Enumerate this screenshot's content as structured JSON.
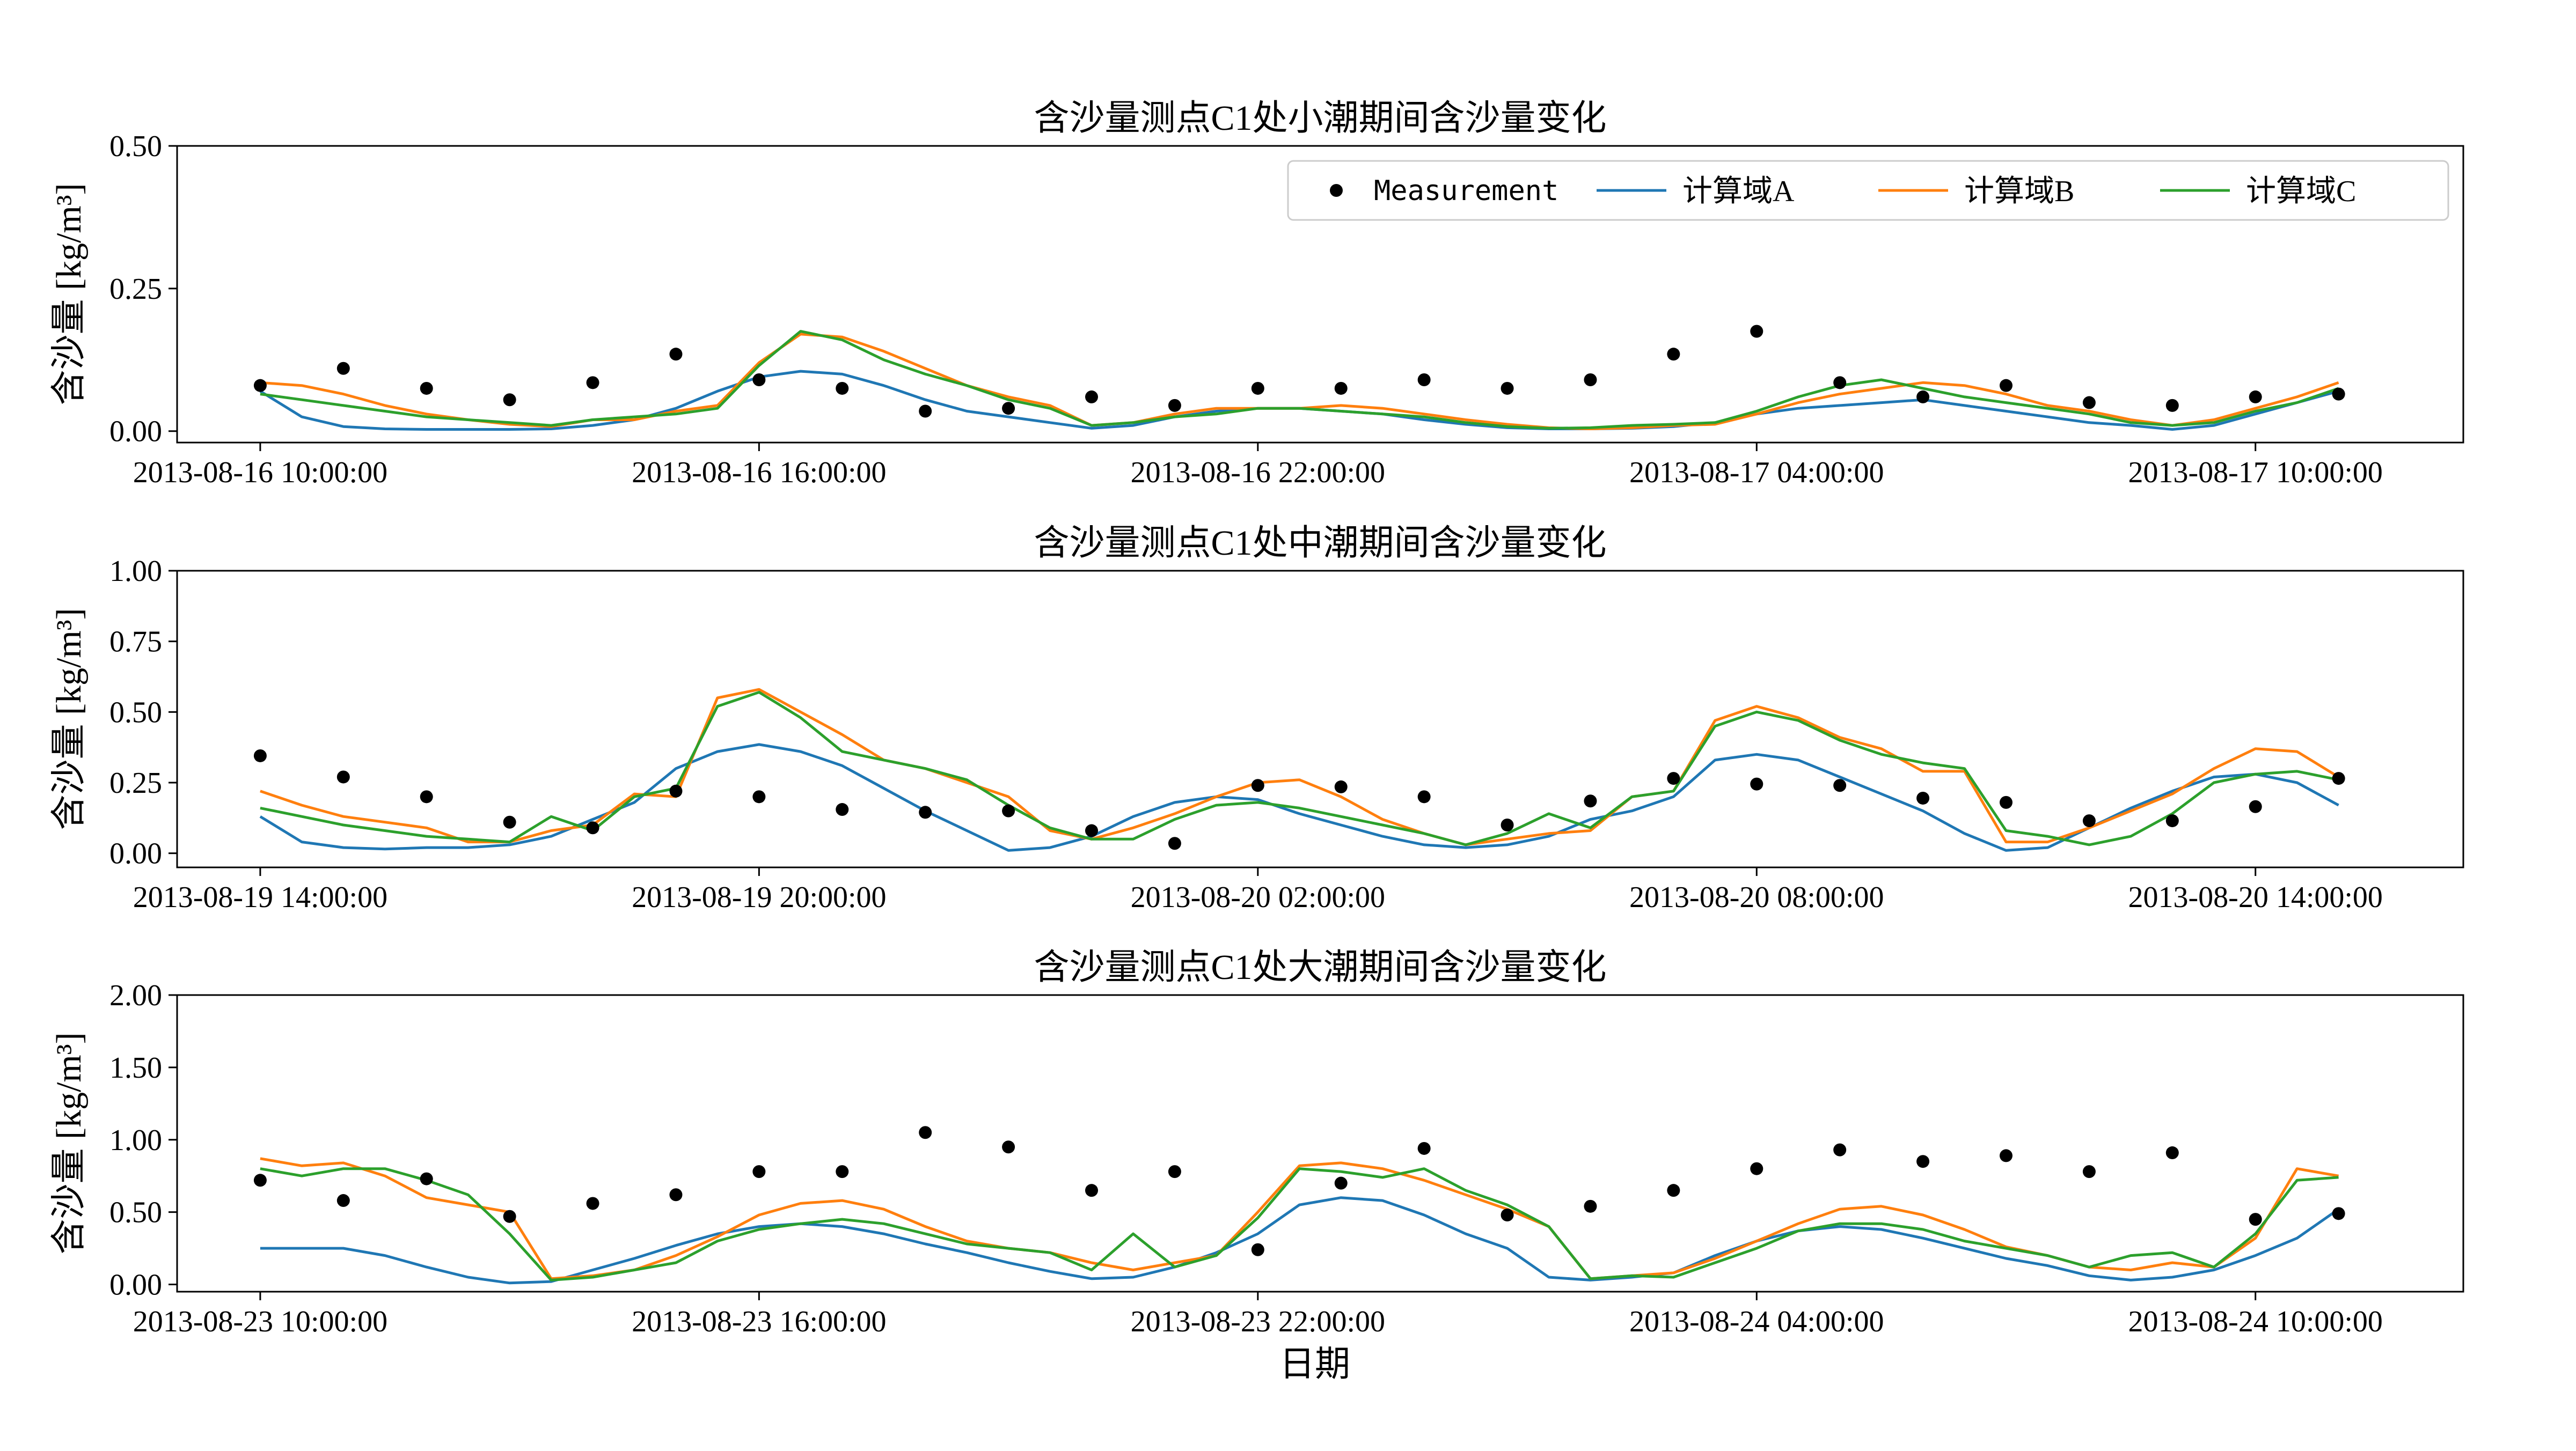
{
  "figure": {
    "xlabel": "日期",
    "colors": {
      "measurement": "#000000",
      "A": "#1f77b4",
      "B": "#ff7f0e",
      "C": "#2ca02c"
    }
  },
  "legend": {
    "placement": "upper-right of first panel",
    "entries": [
      "Measurement",
      "计算域A",
      "计算域B",
      "计算域C"
    ]
  },
  "chart_data": [
    {
      "type": "line",
      "title": "含沙量测点C1处小潮期间含沙量变化",
      "ylabel": "含沙量 [kg/m³]",
      "x_unit": "datetime",
      "x_start": "2013-08-16 10:00:00",
      "xlim": [
        "2013-08-16 09:00:00",
        "2013-08-17 12:00:00"
      ],
      "ylim": [
        -0.02,
        0.5
      ],
      "yticks": [
        "0.00",
        "0.25",
        "0.50"
      ],
      "ytick_values": [
        0,
        0.25,
        0.5
      ],
      "xtick_labels": [
        "2013-08-16 10:00:00",
        "2013-08-16 16:00:00",
        "2013-08-16 22:00:00",
        "2013-08-17 04:00:00",
        "2013-08-17 10:00:00"
      ],
      "xtick_hours": [
        0,
        6,
        12,
        18,
        24
      ],
      "measurement_hours": [
        0,
        1,
        2,
        3,
        4,
        5,
        6,
        7,
        8,
        9,
        10,
        11,
        12,
        13,
        14,
        15,
        16,
        17,
        18,
        19,
        20,
        21,
        22,
        23,
        24,
        25
      ],
      "measurement": [
        0.08,
        0.11,
        0.075,
        0.055,
        0.085,
        0.135,
        0.09,
        0.075,
        0.035,
        0.04,
        0.06,
        0.045,
        0.075,
        0.075,
        0.09,
        0.075,
        0.09,
        0.135,
        0.175,
        0.085,
        0.06,
        0.08,
        0.05,
        0.045,
        0.06,
        0.065
      ],
      "series_hours": [
        0,
        0.5,
        1,
        1.5,
        2,
        2.5,
        3,
        3.5,
        4,
        4.5,
        5,
        5.5,
        6,
        6.5,
        7,
        7.5,
        8,
        8.5,
        9,
        9.5,
        10,
        10.5,
        11,
        11.5,
        12,
        12.5,
        13,
        13.5,
        14,
        14.5,
        15,
        15.5,
        16,
        16.5,
        17,
        17.5,
        18,
        18.5,
        19,
        19.5,
        20,
        20.5,
        21,
        21.5,
        22,
        22.5,
        23,
        23.5,
        24,
        24.5,
        25
      ],
      "series": [
        {
          "name": "计算域A",
          "key": "A",
          "values": [
            0.07,
            0.025,
            0.008,
            0.004,
            0.003,
            0.003,
            0.003,
            0.004,
            0.01,
            0.02,
            0.04,
            0.07,
            0.095,
            0.105,
            0.1,
            0.08,
            0.055,
            0.035,
            0.025,
            0.015,
            0.005,
            0.01,
            0.025,
            0.035,
            0.04,
            0.04,
            0.035,
            0.03,
            0.02,
            0.012,
            0.006,
            0.004,
            0.004,
            0.005,
            0.008,
            0.015,
            0.03,
            0.04,
            0.045,
            0.05,
            0.055,
            0.045,
            0.035,
            0.025,
            0.015,
            0.01,
            0.003,
            0.01,
            0.03,
            0.05,
            0.07
          ]
        },
        {
          "name": "计算域B",
          "key": "B",
          "values": [
            0.085,
            0.08,
            0.065,
            0.045,
            0.03,
            0.02,
            0.012,
            0.008,
            0.02,
            0.02,
            0.035,
            0.045,
            0.12,
            0.17,
            0.165,
            0.14,
            0.11,
            0.08,
            0.06,
            0.045,
            0.01,
            0.015,
            0.03,
            0.04,
            0.04,
            0.04,
            0.045,
            0.04,
            0.03,
            0.02,
            0.012,
            0.006,
            0.004,
            0.006,
            0.01,
            0.012,
            0.03,
            0.05,
            0.065,
            0.075,
            0.085,
            0.08,
            0.065,
            0.045,
            0.035,
            0.02,
            0.01,
            0.02,
            0.04,
            0.06,
            0.085
          ]
        },
        {
          "name": "计算域C",
          "key": "C",
          "values": [
            0.065,
            0.055,
            0.045,
            0.035,
            0.025,
            0.02,
            0.015,
            0.01,
            0.02,
            0.025,
            0.03,
            0.04,
            0.115,
            0.175,
            0.16,
            0.125,
            0.1,
            0.08,
            0.055,
            0.04,
            0.01,
            0.015,
            0.025,
            0.03,
            0.04,
            0.04,
            0.035,
            0.03,
            0.025,
            0.015,
            0.008,
            0.005,
            0.006,
            0.01,
            0.012,
            0.015,
            0.035,
            0.06,
            0.08,
            0.09,
            0.075,
            0.06,
            0.05,
            0.04,
            0.03,
            0.015,
            0.01,
            0.015,
            0.035,
            0.05,
            0.075
          ]
        }
      ]
    },
    {
      "type": "line",
      "title": "含沙量测点C1处中潮期间含沙量变化",
      "ylabel": "含沙量 [kg/m³]",
      "x_unit": "datetime",
      "x_start": "2013-08-19 14:00:00",
      "xlim": [
        "2013-08-19 13:00:00",
        "2013-08-20 16:00:00"
      ],
      "ylim": [
        -0.05,
        1.0
      ],
      "yticks": [
        "0.00",
        "0.25",
        "0.50",
        "0.75",
        "1.00"
      ],
      "ytick_values": [
        0,
        0.25,
        0.5,
        0.75,
        1.0
      ],
      "xtick_labels": [
        "2013-08-19 14:00:00",
        "2013-08-19 20:00:00",
        "2013-08-20 02:00:00",
        "2013-08-20 08:00:00",
        "2013-08-20 14:00:00"
      ],
      "xtick_hours": [
        0,
        6,
        12,
        18,
        24
      ],
      "measurement_hours": [
        0,
        1,
        2,
        3,
        4,
        5,
        6,
        7,
        8,
        9,
        10,
        11,
        12,
        13,
        14,
        15,
        16,
        17,
        18,
        19,
        20,
        21,
        22,
        23,
        24,
        25
      ],
      "measurement": [
        0.345,
        0.27,
        0.2,
        0.11,
        0.09,
        0.22,
        0.2,
        0.155,
        0.145,
        0.15,
        0.08,
        0.035,
        0.24,
        0.235,
        0.2,
        0.1,
        0.185,
        0.265,
        0.245,
        0.24,
        0.195,
        0.18,
        0.115,
        0.115,
        0.165,
        0.265
      ],
      "series_hours": [
        0,
        0.5,
        1,
        1.5,
        2,
        2.5,
        3,
        3.5,
        4,
        4.5,
        5,
        5.5,
        6,
        6.5,
        7,
        7.5,
        8,
        8.5,
        9,
        9.5,
        10,
        10.5,
        11,
        11.5,
        12,
        12.5,
        13,
        13.5,
        14,
        14.5,
        15,
        15.5,
        16,
        16.5,
        17,
        17.5,
        18,
        18.5,
        19,
        19.5,
        20,
        20.5,
        21,
        21.5,
        22,
        22.5,
        23,
        23.5,
        24,
        24.5,
        25
      ],
      "series": [
        {
          "name": "计算域A",
          "key": "A",
          "values": [
            0.13,
            0.04,
            0.02,
            0.015,
            0.02,
            0.02,
            0.03,
            0.06,
            0.12,
            0.18,
            0.3,
            0.36,
            0.385,
            0.36,
            0.31,
            0.23,
            0.15,
            0.08,
            0.01,
            0.02,
            0.06,
            0.13,
            0.18,
            0.2,
            0.19,
            0.14,
            0.1,
            0.06,
            0.03,
            0.02,
            0.03,
            0.06,
            0.12,
            0.15,
            0.2,
            0.33,
            0.35,
            0.33,
            0.27,
            0.21,
            0.15,
            0.07,
            0.01,
            0.02,
            0.09,
            0.16,
            0.22,
            0.27,
            0.28,
            0.25,
            0.17
          ]
        },
        {
          "name": "计算域B",
          "key": "B",
          "values": [
            0.22,
            0.17,
            0.13,
            0.11,
            0.09,
            0.04,
            0.04,
            0.08,
            0.1,
            0.21,
            0.2,
            0.55,
            0.58,
            0.5,
            0.42,
            0.33,
            0.3,
            0.25,
            0.2,
            0.08,
            0.05,
            0.09,
            0.14,
            0.2,
            0.25,
            0.26,
            0.2,
            0.12,
            0.07,
            0.03,
            0.05,
            0.07,
            0.08,
            0.2,
            0.22,
            0.47,
            0.52,
            0.48,
            0.41,
            0.37,
            0.29,
            0.29,
            0.04,
            0.04,
            0.09,
            0.15,
            0.21,
            0.3,
            0.37,
            0.36,
            0.27
          ]
        },
        {
          "name": "计算域C",
          "key": "C",
          "values": [
            0.16,
            0.13,
            0.1,
            0.08,
            0.06,
            0.05,
            0.04,
            0.13,
            0.08,
            0.2,
            0.23,
            0.52,
            0.57,
            0.48,
            0.36,
            0.33,
            0.3,
            0.26,
            0.17,
            0.09,
            0.05,
            0.05,
            0.12,
            0.17,
            0.18,
            0.16,
            0.13,
            0.1,
            0.07,
            0.03,
            0.07,
            0.14,
            0.09,
            0.2,
            0.22,
            0.45,
            0.5,
            0.47,
            0.4,
            0.35,
            0.32,
            0.3,
            0.08,
            0.06,
            0.03,
            0.06,
            0.14,
            0.25,
            0.28,
            0.29,
            0.26
          ]
        }
      ]
    },
    {
      "type": "line",
      "title": "含沙量测点C1处大潮期间含沙量变化",
      "ylabel": "含沙量 [kg/m³]",
      "xlabel": "日期",
      "x_unit": "datetime",
      "x_start": "2013-08-23 10:00:00",
      "xlim": [
        "2013-08-23 09:00:00",
        "2013-08-24 12:00:00"
      ],
      "ylim": [
        -0.05,
        2.0
      ],
      "yticks": [
        "0.00",
        "0.50",
        "1.00",
        "1.50",
        "2.00"
      ],
      "ytick_values": [
        0,
        0.5,
        1.0,
        1.5,
        2.0
      ],
      "xtick_labels": [
        "2013-08-23 10:00:00",
        "2013-08-23 16:00:00",
        "2013-08-23 22:00:00",
        "2013-08-24 04:00:00",
        "2013-08-24 10:00:00"
      ],
      "xtick_hours": [
        0,
        6,
        12,
        18,
        24
      ],
      "measurement_hours": [
        0,
        1,
        2,
        3,
        4,
        5,
        6,
        7,
        8,
        9,
        10,
        11,
        12,
        13,
        14,
        15,
        16,
        17,
        18,
        19,
        20,
        21,
        22,
        23,
        24,
        25
      ],
      "measurement": [
        0.72,
        0.58,
        0.73,
        0.47,
        0.56,
        0.62,
        0.78,
        0.78,
        1.05,
        0.95,
        0.65,
        0.78,
        0.24,
        0.7,
        0.94,
        0.48,
        0.54,
        0.65,
        0.8,
        0.93,
        0.85,
        0.89,
        0.78,
        0.91,
        0.45,
        0.49
      ],
      "series_hours": [
        0,
        0.5,
        1,
        1.5,
        2,
        2.5,
        3,
        3.5,
        4,
        4.5,
        5,
        5.5,
        6,
        6.5,
        7,
        7.5,
        8,
        8.5,
        9,
        9.5,
        10,
        10.5,
        11,
        11.5,
        12,
        12.5,
        13,
        13.5,
        14,
        14.5,
        15,
        15.5,
        16,
        16.5,
        17,
        17.5,
        18,
        18.5,
        19,
        19.5,
        20,
        20.5,
        21,
        21.5,
        22,
        22.5,
        23,
        23.5,
        24,
        24.5,
        25
      ],
      "series": [
        {
          "name": "计算域A",
          "key": "A",
          "values": [
            0.25,
            0.25,
            0.25,
            0.2,
            0.12,
            0.05,
            0.01,
            0.02,
            0.1,
            0.18,
            0.27,
            0.35,
            0.4,
            0.42,
            0.4,
            0.35,
            0.28,
            0.22,
            0.15,
            0.09,
            0.04,
            0.05,
            0.12,
            0.22,
            0.35,
            0.55,
            0.6,
            0.58,
            0.48,
            0.35,
            0.25,
            0.05,
            0.03,
            0.05,
            0.08,
            0.2,
            0.3,
            0.37,
            0.4,
            0.38,
            0.32,
            0.25,
            0.18,
            0.13,
            0.06,
            0.03,
            0.05,
            0.1,
            0.2,
            0.32,
            0.52
          ]
        },
        {
          "name": "计算域B",
          "key": "B",
          "values": [
            0.87,
            0.82,
            0.84,
            0.75,
            0.6,
            0.55,
            0.5,
            0.04,
            0.06,
            0.1,
            0.2,
            0.33,
            0.48,
            0.56,
            0.58,
            0.52,
            0.4,
            0.3,
            0.25,
            0.22,
            0.15,
            0.1,
            0.15,
            0.2,
            0.5,
            0.82,
            0.84,
            0.8,
            0.72,
            0.62,
            0.52,
            0.4,
            0.04,
            0.06,
            0.08,
            0.18,
            0.3,
            0.42,
            0.52,
            0.54,
            0.48,
            0.38,
            0.26,
            0.2,
            0.12,
            0.1,
            0.15,
            0.12,
            0.32,
            0.8,
            0.75
          ]
        },
        {
          "name": "计算域C",
          "key": "C",
          "values": [
            0.8,
            0.75,
            0.8,
            0.8,
            0.72,
            0.62,
            0.35,
            0.03,
            0.05,
            0.1,
            0.15,
            0.3,
            0.38,
            0.42,
            0.45,
            0.42,
            0.35,
            0.28,
            0.25,
            0.22,
            0.1,
            0.35,
            0.12,
            0.2,
            0.46,
            0.8,
            0.78,
            0.74,
            0.8,
            0.65,
            0.55,
            0.4,
            0.04,
            0.06,
            0.05,
            0.15,
            0.25,
            0.37,
            0.42,
            0.42,
            0.38,
            0.3,
            0.25,
            0.2,
            0.12,
            0.2,
            0.22,
            0.12,
            0.35,
            0.72,
            0.74
          ]
        }
      ]
    }
  ]
}
